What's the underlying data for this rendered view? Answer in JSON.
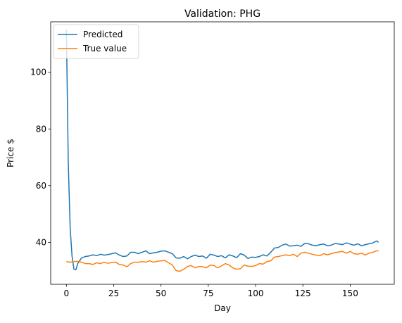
{
  "chart_data": {
    "type": "line",
    "title": "Validation: PHG",
    "xlabel": "Day",
    "ylabel": "Price $",
    "xlim": [
      -8.3,
      173.3
    ],
    "ylim": [
      25.2,
      117.8
    ],
    "xticks": [
      0,
      25,
      50,
      75,
      100,
      125,
      150
    ],
    "yticks": [
      40,
      60,
      80,
      100
    ],
    "grid": false,
    "legend_position": "top-left",
    "series": [
      {
        "name": "Predicted",
        "color": "#1f77b4",
        "x": [
          0,
          1,
          2,
          3,
          4,
          5,
          6,
          7,
          8,
          10,
          12,
          14,
          16,
          18,
          20,
          22,
          24,
          26,
          28,
          30,
          32,
          34,
          36,
          38,
          40,
          42,
          44,
          46,
          48,
          50,
          52,
          54,
          56,
          58,
          60,
          62,
          64,
          66,
          68,
          70,
          72,
          74,
          76,
          78,
          80,
          82,
          84,
          86,
          88,
          90,
          92,
          94,
          96,
          98,
          100,
          102,
          104,
          106,
          108,
          110,
          112,
          114,
          116,
          118,
          120,
          122,
          124,
          126,
          128,
          130,
          132,
          134,
          136,
          138,
          140,
          142,
          144,
          146,
          148,
          150,
          152,
          154,
          156,
          158,
          160,
          162,
          164,
          165
        ],
        "y": [
          115,
          68,
          45,
          35,
          30.5,
          30.3,
          32.5,
          33.5,
          34.5,
          35,
          35.2,
          35.6,
          35.3,
          35.8,
          35.5,
          35.7,
          36,
          36.3,
          35.5,
          35,
          35.2,
          36.5,
          36.5,
          36,
          36.5,
          37,
          36,
          36.3,
          36.5,
          36.9,
          37,
          36.5,
          36,
          34.5,
          34.4,
          35,
          34.2,
          35,
          35.5,
          35,
          35.2,
          34.4,
          35.8,
          35.5,
          35,
          35.3,
          34.5,
          35.6,
          35.2,
          34.6,
          36,
          35.5,
          34.3,
          34.8,
          34.7,
          35,
          35.6,
          35.2,
          36.5,
          38,
          38.2,
          39,
          39.4,
          38.7,
          38.8,
          39,
          38.6,
          39.6,
          39.5,
          39,
          38.8,
          39.2,
          39.4,
          38.8,
          39,
          39.6,
          39.4,
          39.2,
          39.8,
          39.4,
          39,
          39.5,
          38.8,
          39.2,
          39.5,
          39.8,
          40.5,
          40
        ]
      },
      {
        "name": "True value",
        "color": "#ff7f0e",
        "x": [
          0,
          2,
          4,
          6,
          8,
          10,
          12,
          14,
          16,
          18,
          20,
          22,
          24,
          26,
          28,
          30,
          32,
          34,
          36,
          38,
          40,
          42,
          44,
          46,
          48,
          50,
          52,
          54,
          56,
          58,
          60,
          62,
          64,
          66,
          68,
          70,
          72,
          74,
          76,
          78,
          80,
          82,
          84,
          86,
          88,
          90,
          92,
          94,
          96,
          98,
          100,
          102,
          104,
          106,
          108,
          110,
          112,
          114,
          116,
          118,
          120,
          122,
          124,
          126,
          128,
          130,
          132,
          134,
          136,
          138,
          140,
          142,
          144,
          146,
          148,
          150,
          152,
          154,
          156,
          158,
          160,
          162,
          164,
          165
        ],
        "y": [
          33.2,
          33,
          33.2,
          33.3,
          33,
          32.5,
          32.5,
          32.2,
          32.8,
          32.5,
          33,
          32.6,
          32.9,
          33,
          32.2,
          32,
          31.4,
          32.5,
          33,
          33,
          33.2,
          33,
          33.5,
          33,
          33.3,
          33.5,
          33.6,
          32.8,
          32,
          30,
          29.8,
          30.5,
          31.5,
          31.8,
          31,
          31.5,
          31.4,
          31,
          32,
          31.8,
          31,
          31.7,
          32.5,
          32,
          31,
          30.5,
          30.7,
          32,
          31.6,
          31.5,
          31.8,
          32.5,
          32.3,
          33.2,
          33.5,
          34.8,
          35,
          35.3,
          35.6,
          35.3,
          35.8,
          35,
          36.2,
          36.5,
          36.2,
          35.8,
          35.5,
          35.3,
          36,
          35.6,
          36,
          36.4,
          36.6,
          36.8,
          36.2,
          36.8,
          36,
          35.8,
          36.2,
          35.5,
          36.2,
          36.5,
          37,
          37
        ]
      }
    ]
  }
}
